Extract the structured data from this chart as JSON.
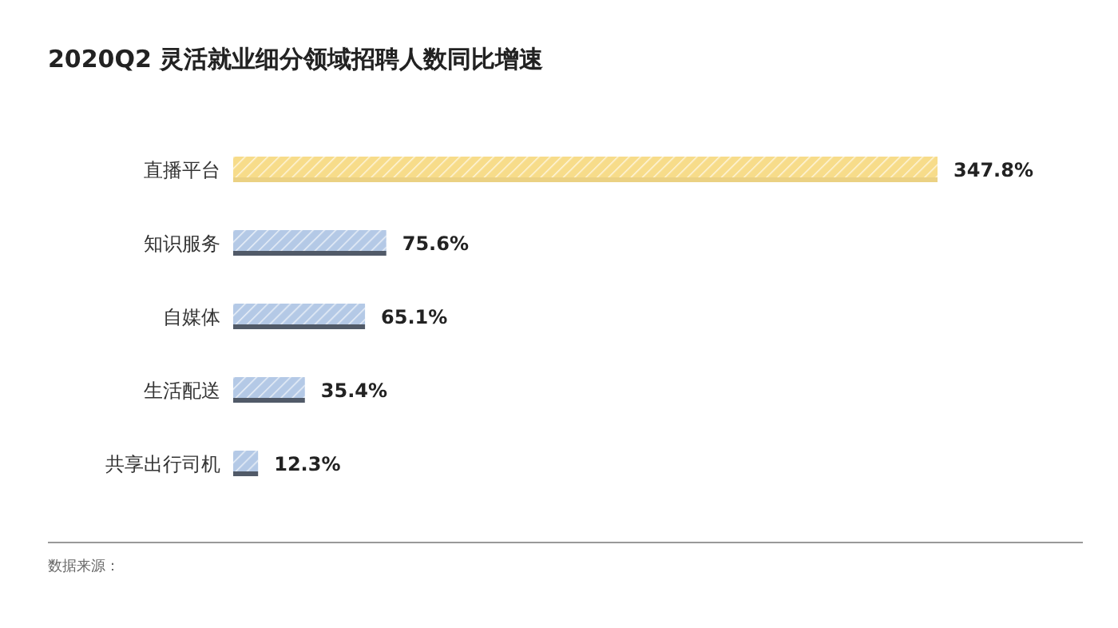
{
  "chart_data": {
    "type": "bar",
    "orientation": "horizontal",
    "title": "2020Q2 灵活就业细分领域招聘人数同比增速",
    "categories": [
      "直播平台",
      "知识服务",
      "自媒体",
      "生活配送",
      "共享出行司机"
    ],
    "values": [
      347.8,
      75.6,
      65.1,
      35.4,
      12.3
    ],
    "colors": [
      "#f7dc8a",
      "#b4c9e6",
      "#b4c9e6",
      "#b4c9e6",
      "#b4c9e6"
    ],
    "value_labels": [
      "347.8%",
      "75.6%",
      "65.1%",
      "35.4%",
      "12.3%"
    ],
    "annotations": [
      "数据来源："
    ]
  }
}
